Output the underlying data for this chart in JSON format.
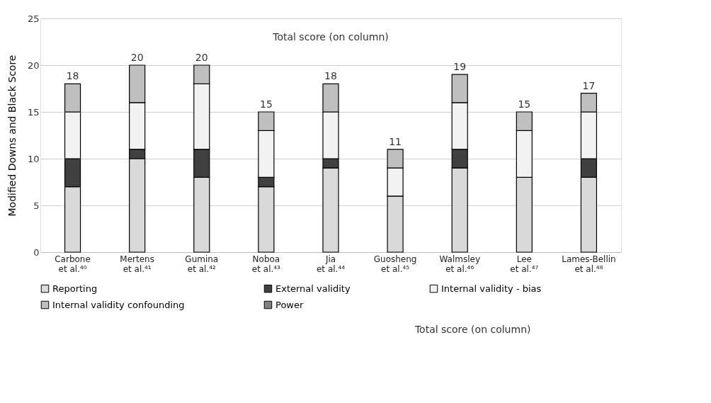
{
  "chart_data": {
    "type": "bar",
    "stacked": true,
    "ylabel": "Modified Downs and Black Score",
    "categories": [
      "Carbone\net al.⁴⁰",
      "Mertens\net al.⁴¹",
      "Gumina\net al.⁴²",
      "Noboa\net al.⁴³",
      "Jia\net al.⁴⁴",
      "Guosheng\net al.⁴⁵",
      "Walmsley\net al.⁴⁶",
      "Lee\net al.⁴⁷",
      "Lames-Bellin\net al.⁴⁸"
    ],
    "series": [
      {
        "name": "Reporting",
        "color": "#d9d9d9",
        "values": [
          7,
          10,
          8,
          7,
          9,
          6,
          9,
          8,
          8
        ]
      },
      {
        "name": "External validity",
        "color": "#404040",
        "values": [
          3,
          1,
          3,
          1,
          1,
          0,
          2,
          0,
          2
        ]
      },
      {
        "name": "Internal validity - bias",
        "color": "#f2f2f2",
        "values": [
          5,
          5,
          7,
          5,
          5,
          3,
          5,
          5,
          5
        ]
      },
      {
        "name": "Internal validity confounding",
        "color": "#bfbfbf",
        "values": [
          3,
          4,
          2,
          2,
          3,
          2,
          3,
          2,
          2
        ]
      },
      {
        "name": "Power",
        "color": "#808080",
        "values": [
          0,
          0,
          0,
          0,
          0,
          0,
          0,
          0,
          0
        ]
      }
    ],
    "totals": [
      "18",
      "20",
      "20",
      "15",
      "18",
      "11",
      "19",
      "15",
      "17"
    ],
    "annotations": [
      "Total score (on column)",
      "Total score (on column)"
    ],
    "ylim": [
      0,
      25
    ],
    "yticks": [
      0,
      5,
      10,
      15,
      20,
      25
    ],
    "grid": "y",
    "legend": "bottom"
  }
}
